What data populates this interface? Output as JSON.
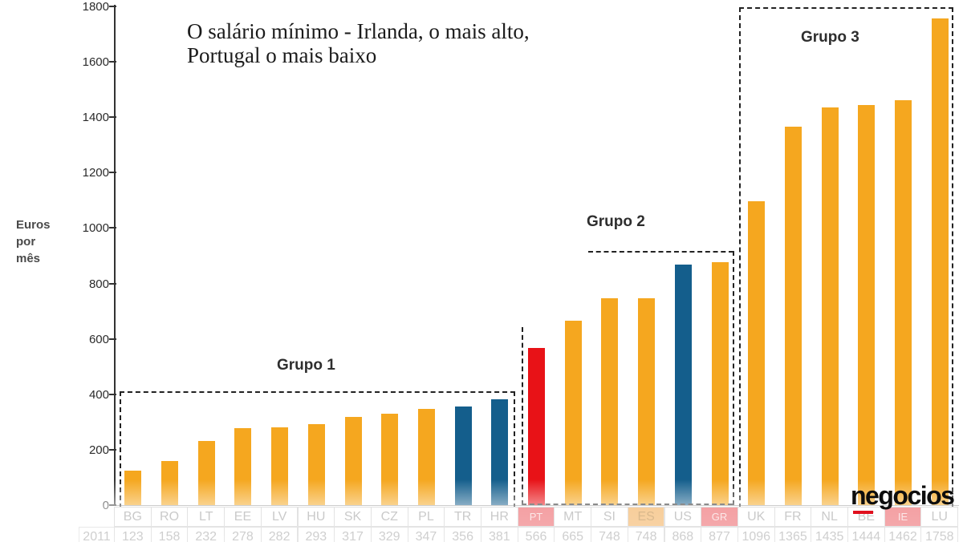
{
  "title_line1": "O salário mínimo - Irlanda, o mais alto,",
  "title_line2": "Portugal o mais baixo",
  "y_axis_label": "Euros\npor\nmês",
  "chart_data": {
    "type": "bar",
    "title": "O salário mínimo - Irlanda, o mais alto, Portugal o mais baixo",
    "ylabel": "Euros por mês",
    "ylim": [
      0,
      1800
    ],
    "ytick_step": 200,
    "grid": false,
    "legend": "none",
    "categories": [
      "BG",
      "RO",
      "LT",
      "EE",
      "LV",
      "HU",
      "SK",
      "CZ",
      "PL",
      "TR",
      "HR",
      "PT",
      "MT",
      "SI",
      "ES",
      "US",
      "GR",
      "UK",
      "FR",
      "NL",
      "BE",
      "IE",
      "LU"
    ],
    "values": [
      123,
      158,
      232,
      278,
      282,
      293,
      317,
      329,
      347,
      356,
      381,
      566,
      665,
      748,
      748,
      868,
      877,
      1096,
      1365,
      1435,
      1444,
      1462,
      1758
    ],
    "bar_color_keys": [
      "orange",
      "orange",
      "orange",
      "orange",
      "orange",
      "orange",
      "orange",
      "orange",
      "orange",
      "blue",
      "blue",
      "red",
      "orange",
      "orange",
      "orange",
      "blue",
      "orange",
      "orange",
      "orange",
      "orange",
      "orange",
      "orange",
      "orange"
    ],
    "groups": [
      {
        "label": "Grupo 1",
        "from": "BG",
        "to": "HR"
      },
      {
        "label": "Grupo 2",
        "from": "PT",
        "to": "GR"
      },
      {
        "label": "Grupo 3",
        "from": "UK",
        "to": "LU"
      }
    ]
  },
  "table": {
    "row_label": "2011",
    "codes": [
      "BG",
      "RO",
      "LT",
      "EE",
      "LV",
      "HU",
      "SK",
      "CZ",
      "PL",
      "TR",
      "HR",
      "PT",
      "MT",
      "SI",
      "ES",
      "US",
      "GR",
      "UK",
      "FR",
      "NL",
      "BE",
      "IE",
      "LU"
    ],
    "values": [
      123,
      158,
      232,
      278,
      282,
      293,
      317,
      329,
      347,
      356,
      381,
      566,
      665,
      748,
      748,
      868,
      877,
      1096,
      1365,
      1435,
      1444,
      1462,
      1758
    ],
    "cell_styles": {
      "PT": "red",
      "ES": "orange",
      "GR": "red",
      "IE": "red"
    }
  },
  "logo_text": "negocios",
  "colors": {
    "orange": "#F5A71F",
    "blue": "#145E8C",
    "red": "#E81217",
    "axis": "#333333"
  }
}
